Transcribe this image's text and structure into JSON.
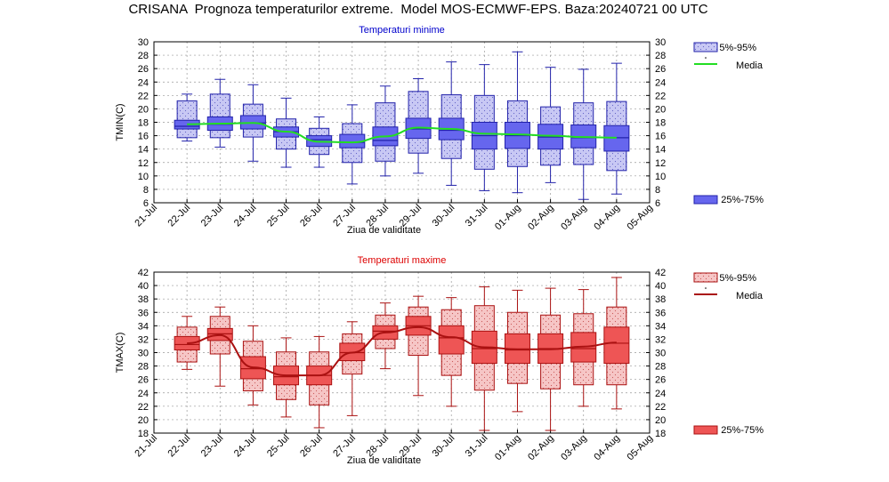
{
  "page": {
    "title": "CRISANA  Prognoza temperaturilor extreme.  Model MOS-ECMWF-EPS. Baza:20240721 00 UTC"
  },
  "chart_data": [
    {
      "type": "box",
      "title": "Temperaturi minime",
      "title_color": "#0000cc",
      "ylabel": "TMIN(C)",
      "xlabel": "Ziua de validitate",
      "ylim": [
        6,
        30
      ],
      "yticks": [
        6,
        8,
        10,
        12,
        14,
        16,
        18,
        20,
        22,
        24,
        26,
        28,
        30
      ],
      "categories": [
        "21-Jul",
        "22-Jul",
        "23-Jul",
        "24-Jul",
        "25-Jul",
        "26-Jul",
        "27-Jul",
        "28-Jul",
        "29-Jul",
        "30-Jul",
        "31-Jul",
        "01-Aug",
        "02-Aug",
        "03-Aug",
        "04-Aug",
        "05-Aug"
      ],
      "grid": true,
      "colors": {
        "light": "#c8c8f4",
        "dark": "#6666ee",
        "edge": "#2222aa",
        "mean": "#22dd22"
      },
      "legend": {
        "p5_95": "5%-95%",
        "mean": "Media",
        "p25_75": "25%-75%"
      },
      "boxes": [
        {
          "x": "22-Jul",
          "min": 15.2,
          "p5": 15.7,
          "p25": 17.0,
          "median": 17.4,
          "p75": 18.3,
          "p95": 21.2,
          "max": 22.2,
          "mean": 17.7
        },
        {
          "x": "23-Jul",
          "min": 14.3,
          "p5": 15.7,
          "p25": 16.8,
          "median": 17.7,
          "p75": 18.8,
          "p95": 22.2,
          "max": 24.4,
          "mean": 17.8
        },
        {
          "x": "24-Jul",
          "min": 12.2,
          "p5": 15.8,
          "p25": 17.0,
          "median": 17.9,
          "p75": 19.0,
          "p95": 20.7,
          "max": 23.6,
          "mean": 17.9
        },
        {
          "x": "25-Jul",
          "min": 11.3,
          "p5": 14.0,
          "p25": 15.8,
          "median": 16.6,
          "p75": 17.3,
          "p95": 18.5,
          "max": 21.6,
          "mean": 16.6
        },
        {
          "x": "26-Jul",
          "min": 11.3,
          "p5": 13.2,
          "p25": 14.4,
          "median": 15.4,
          "p75": 16.0,
          "p95": 17.1,
          "max": 18.8,
          "mean": 15.1
        },
        {
          "x": "27-Jul",
          "min": 8.8,
          "p5": 12.0,
          "p25": 14.2,
          "median": 15.0,
          "p75": 16.2,
          "p95": 17.8,
          "max": 20.6,
          "mean": 15.0
        },
        {
          "x": "28-Jul",
          "min": 10.0,
          "p5": 12.2,
          "p25": 14.5,
          "median": 15.3,
          "p75": 17.3,
          "p95": 20.9,
          "max": 23.4,
          "mean": 15.9
        },
        {
          "x": "29-Jul",
          "min": 10.4,
          "p5": 13.4,
          "p25": 15.6,
          "median": 17.0,
          "p75": 18.6,
          "p95": 22.6,
          "max": 24.5,
          "mean": 17.2
        },
        {
          "x": "30-Jul",
          "min": 8.6,
          "p5": 12.6,
          "p25": 15.4,
          "median": 16.8,
          "p75": 18.6,
          "p95": 22.1,
          "max": 27.0,
          "mean": 17.0
        },
        {
          "x": "31-Jul",
          "min": 7.8,
          "p5": 11.0,
          "p25": 14.0,
          "median": 16.0,
          "p75": 18.0,
          "p95": 22.0,
          "max": 26.6,
          "mean": 16.3
        },
        {
          "x": "01-Aug",
          "min": 7.5,
          "p5": 11.4,
          "p25": 14.1,
          "median": 16.0,
          "p75": 18.0,
          "p95": 21.2,
          "max": 28.5,
          "mean": 16.2
        },
        {
          "x": "02-Aug",
          "min": 9.0,
          "p5": 11.6,
          "p25": 14.0,
          "median": 15.8,
          "p75": 17.7,
          "p95": 20.3,
          "max": 26.2,
          "mean": 16.0
        },
        {
          "x": "03-Aug",
          "min": 6.5,
          "p5": 11.7,
          "p25": 14.2,
          "median": 15.7,
          "p75": 17.6,
          "p95": 20.9,
          "max": 25.9,
          "mean": 15.8
        },
        {
          "x": "04-Aug",
          "min": 7.3,
          "p5": 10.8,
          "p25": 13.7,
          "median": 15.7,
          "p75": 17.5,
          "p95": 21.1,
          "max": 26.8,
          "mean": 15.7
        }
      ]
    },
    {
      "type": "box",
      "title": "Temperaturi maxime",
      "title_color": "#dd0000",
      "ylabel": "TMAX(C)",
      "xlabel": "Ziua de validitate",
      "ylim": [
        18,
        42
      ],
      "yticks": [
        18,
        20,
        22,
        24,
        26,
        28,
        30,
        32,
        34,
        36,
        38,
        40,
        42
      ],
      "categories": [
        "21-Jul",
        "22-Jul",
        "23-Jul",
        "24-Jul",
        "25-Jul",
        "26-Jul",
        "27-Jul",
        "28-Jul",
        "29-Jul",
        "30-Jul",
        "31-Jul",
        "01-Aug",
        "02-Aug",
        "03-Aug",
        "04-Aug",
        "05-Aug"
      ],
      "grid": true,
      "colors": {
        "light": "#f6c6c6",
        "dark": "#ee5555",
        "edge": "#aa1111",
        "mean": "#aa1111"
      },
      "legend": {
        "p5_95": "5%-95%",
        "mean": "Media",
        "p25_75": "25%-75%"
      },
      "boxes": [
        {
          "x": "22-Jul",
          "min": 27.5,
          "p5": 28.6,
          "p25": 30.4,
          "median": 31.2,
          "p75": 32.4,
          "p95": 33.8,
          "max": 35.4,
          "mean": 31.4
        },
        {
          "x": "23-Jul",
          "min": 25.0,
          "p5": 29.8,
          "p25": 31.8,
          "median": 32.8,
          "p75": 33.6,
          "p95": 35.4,
          "max": 36.8,
          "mean": 32.6
        },
        {
          "x": "24-Jul",
          "min": 22.2,
          "p5": 24.3,
          "p25": 26.1,
          "median": 27.6,
          "p75": 29.4,
          "p95": 31.7,
          "max": 34.0,
          "mean": 27.8
        },
        {
          "x": "25-Jul",
          "min": 20.4,
          "p5": 23.0,
          "p25": 25.2,
          "median": 26.4,
          "p75": 28.0,
          "p95": 30.1,
          "max": 32.2,
          "mean": 26.6
        },
        {
          "x": "26-Jul",
          "min": 18.8,
          "p5": 22.2,
          "p25": 25.2,
          "median": 26.6,
          "p75": 28.0,
          "p95": 30.1,
          "max": 32.4,
          "mean": 26.6
        },
        {
          "x": "27-Jul",
          "min": 20.6,
          "p5": 26.8,
          "p25": 28.8,
          "median": 30.0,
          "p75": 31.4,
          "p95": 32.8,
          "max": 34.6,
          "mean": 30.0
        },
        {
          "x": "28-Jul",
          "min": 27.6,
          "p5": 30.6,
          "p25": 32.0,
          "median": 33.2,
          "p75": 34.0,
          "p95": 35.6,
          "max": 37.4,
          "mean": 33.0
        },
        {
          "x": "29-Jul",
          "min": 23.6,
          "p5": 29.6,
          "p25": 32.6,
          "median": 34.0,
          "p75": 35.4,
          "p95": 36.8,
          "max": 38.4,
          "mean": 33.8
        },
        {
          "x": "30-Jul",
          "min": 22.0,
          "p5": 26.6,
          "p25": 29.8,
          "median": 32.2,
          "p75": 34.0,
          "p95": 36.4,
          "max": 38.2,
          "mean": 32.3
        },
        {
          "x": "31-Jul",
          "min": 18.4,
          "p5": 24.4,
          "p25": 28.4,
          "median": 30.6,
          "p75": 33.2,
          "p95": 37.0,
          "max": 39.8,
          "mean": 30.8
        },
        {
          "x": "01-Aug",
          "min": 21.2,
          "p5": 25.4,
          "p25": 28.4,
          "median": 30.4,
          "p75": 32.8,
          "p95": 36.0,
          "max": 39.3,
          "mean": 30.5
        },
        {
          "x": "02-Aug",
          "min": 18.4,
          "p5": 24.6,
          "p25": 28.4,
          "median": 30.6,
          "p75": 32.8,
          "p95": 35.6,
          "max": 39.6,
          "mean": 30.5
        },
        {
          "x": "03-Aug",
          "min": 22.0,
          "p5": 25.2,
          "p25": 28.6,
          "median": 30.6,
          "p75": 33.0,
          "p95": 35.8,
          "max": 39.4,
          "mean": 30.9
        },
        {
          "x": "04-Aug",
          "min": 21.6,
          "p5": 25.2,
          "p25": 28.4,
          "median": 31.4,
          "p75": 33.8,
          "p95": 36.8,
          "max": 41.2,
          "mean": 31.5
        }
      ]
    }
  ]
}
